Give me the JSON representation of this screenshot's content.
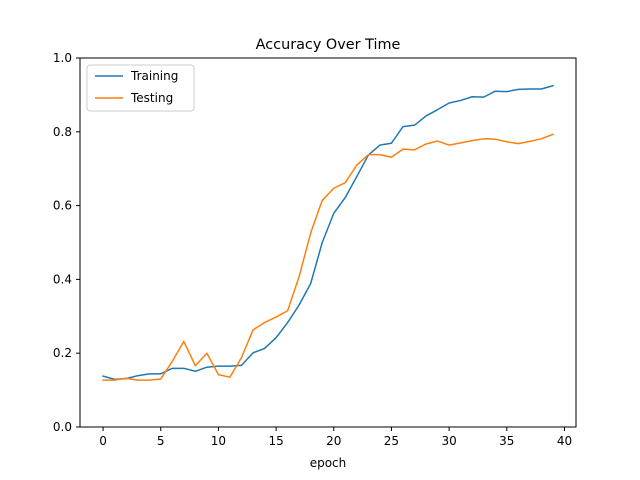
{
  "chart_data": {
    "type": "line",
    "title": "Accuracy Over Time",
    "xlabel": "epoch",
    "ylabel": "",
    "xlim": [
      -2,
      41
    ],
    "ylim": [
      0.0,
      1.0
    ],
    "xticks": [
      0,
      5,
      10,
      15,
      20,
      25,
      30,
      35,
      40
    ],
    "yticks": [
      0.0,
      0.2,
      0.4,
      0.6,
      0.8,
      1.0
    ],
    "xtick_labels": [
      "0",
      "5",
      "10",
      "15",
      "20",
      "25",
      "30",
      "35",
      "40"
    ],
    "ytick_labels": [
      "0.0",
      "0.2",
      "0.4",
      "0.6",
      "0.8",
      "1.0"
    ],
    "grid": false,
    "legend_position": "upper-left",
    "x": [
      0,
      1,
      2,
      3,
      4,
      5,
      6,
      7,
      8,
      9,
      10,
      11,
      12,
      13,
      14,
      15,
      16,
      17,
      18,
      19,
      20,
      21,
      22,
      23,
      24,
      25,
      26,
      27,
      28,
      29,
      30,
      31,
      32,
      33,
      34,
      35,
      36,
      37,
      38,
      39
    ],
    "series": [
      {
        "name": "Training",
        "color": "#1f77b4",
        "values": [
          0.138,
          0.129,
          0.131,
          0.139,
          0.144,
          0.144,
          0.159,
          0.159,
          0.151,
          0.162,
          0.165,
          0.165,
          0.167,
          0.201,
          0.213,
          0.242,
          0.283,
          0.331,
          0.389,
          0.5,
          0.579,
          0.622,
          0.679,
          0.737,
          0.764,
          0.769,
          0.814,
          0.818,
          0.843,
          0.86,
          0.878,
          0.885,
          0.895,
          0.894,
          0.91,
          0.909,
          0.915,
          0.916,
          0.916,
          0.925
        ]
      },
      {
        "name": "Testing",
        "color": "#ff7f0e",
        "values": [
          0.127,
          0.127,
          0.132,
          0.127,
          0.127,
          0.13,
          0.178,
          0.232,
          0.166,
          0.2,
          0.142,
          0.135,
          0.188,
          0.263,
          0.283,
          0.298,
          0.315,
          0.408,
          0.526,
          0.614,
          0.647,
          0.662,
          0.71,
          0.738,
          0.738,
          0.731,
          0.753,
          0.751,
          0.767,
          0.775,
          0.764,
          0.77,
          0.776,
          0.781,
          0.78,
          0.773,
          0.768,
          0.774,
          0.781,
          0.793
        ]
      }
    ]
  }
}
